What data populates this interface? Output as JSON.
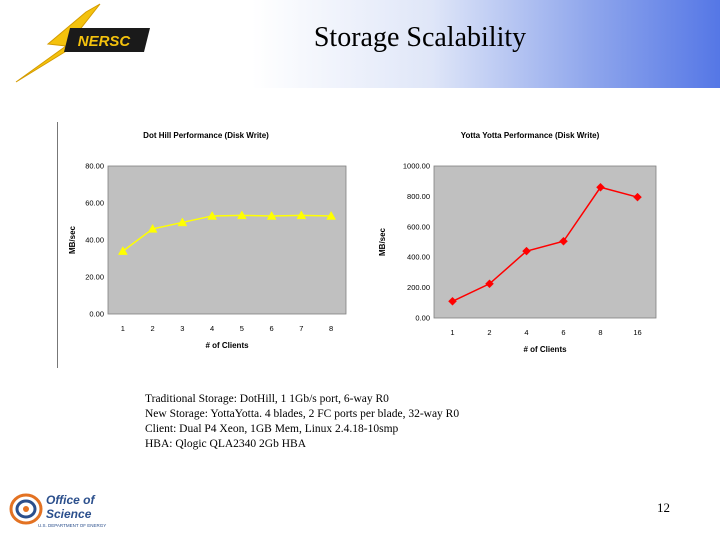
{
  "header": {
    "logo_text": "NERSC",
    "title": "Storage Scalability"
  },
  "chart_data": [
    {
      "type": "line",
      "title": "Dot Hill Performance (Disk Write)",
      "xlabel": "# of Clients",
      "ylabel": "MB/sec",
      "categories": [
        "1",
        "2",
        "3",
        "4",
        "5",
        "6",
        "7",
        "8"
      ],
      "series": [
        {
          "values": [
            34,
            46,
            49.5,
            53,
            53.3,
            53,
            53.3,
            53
          ],
          "color": "#ffff00",
          "marker": "triangle"
        }
      ],
      "ylim": [
        0,
        80
      ],
      "yticks": [
        "0.00",
        "20.00",
        "40.00",
        "60.00",
        "80.00"
      ],
      "plot_background": "#c0c0c0",
      "grid": false,
      "legend": "none"
    },
    {
      "type": "line",
      "title": "Yotta Yotta Performance (Disk Write)",
      "xlabel": "# of Clients",
      "ylabel": "MB/sec",
      "categories": [
        "1",
        "2",
        "4",
        "6",
        "8",
        "16"
      ],
      "series": [
        {
          "values": [
            110,
            225,
            440,
            505,
            860,
            795
          ],
          "color": "#ff0000",
          "marker": "diamond"
        }
      ],
      "ylim": [
        0,
        1000
      ],
      "yticks": [
        "0.00",
        "200.00",
        "400.00",
        "600.00",
        "800.00",
        "1000.00"
      ],
      "plot_background": "#c0c0c0",
      "grid": false,
      "legend": "none"
    }
  ],
  "caption": {
    "line1": "Traditional Storage: DotHill, 1 1Gb/s port, 6-way R0",
    "line2": "New Storage: YottaYotta. 4 blades, 2 FC ports per blade, 32-way R0",
    "line3": "Client: Dual P4 Xeon, 1GB Mem, Linux 2.4.18-10smp",
    "line4": "HBA: Qlogic QLA2340 2Gb HBA"
  },
  "footer": {
    "logo_line1": "Office of",
    "logo_line2": "Science",
    "logo_subtext": "U.S. DEPARTMENT OF ENERGY",
    "page_number": "12"
  }
}
